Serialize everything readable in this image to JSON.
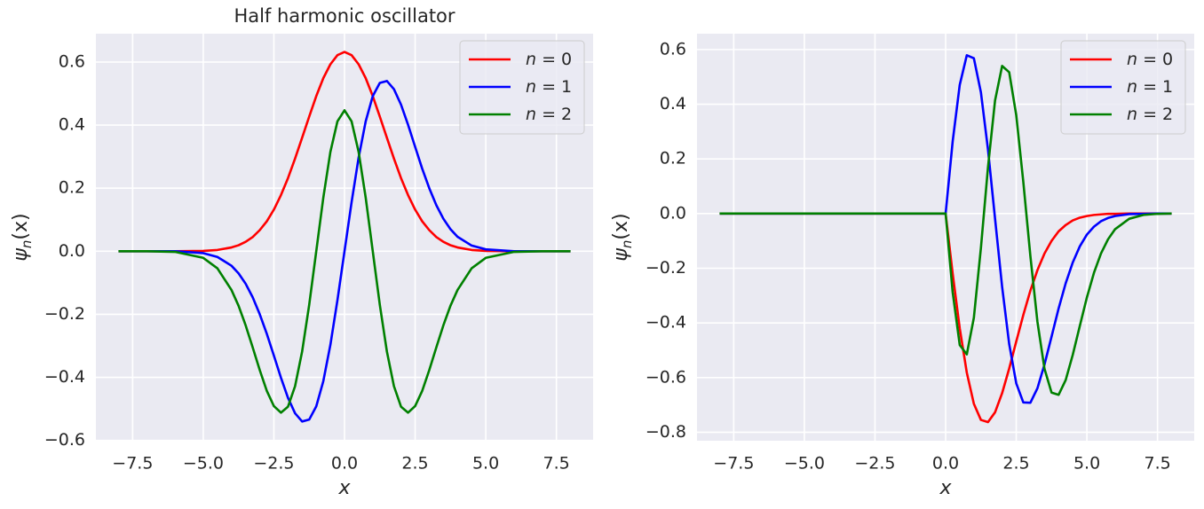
{
  "chart_data": [
    {
      "type": "line",
      "title": "Half harmonic oscillator",
      "xlabel": "x",
      "ylabel": "ψn(x)",
      "x": [
        -8,
        -7,
        -6,
        -5,
        -4.5,
        -4,
        -3.75,
        -3.5,
        -3.25,
        -3,
        -2.75,
        -2.5,
        -2.25,
        -2,
        -1.75,
        -1.5,
        -1.25,
        -1,
        -0.75,
        -0.5,
        -0.25,
        0,
        0.25,
        0.5,
        0.75,
        1,
        1.25,
        1.5,
        1.75,
        2,
        2.25,
        2.5,
        2.75,
        3,
        3.25,
        3.5,
        3.75,
        4,
        4.5,
        5,
        6,
        7,
        8
      ],
      "series": [
        {
          "name": "n = 0",
          "color": "#ff0000",
          "values": [
            0,
            0,
            0,
            0.001,
            0.004,
            0.012,
            0.019,
            0.03,
            0.045,
            0.067,
            0.095,
            0.132,
            0.178,
            0.232,
            0.294,
            0.36,
            0.427,
            0.492,
            0.549,
            0.593,
            0.622,
            0.632,
            0.622,
            0.593,
            0.549,
            0.492,
            0.427,
            0.36,
            0.294,
            0.232,
            0.178,
            0.132,
            0.095,
            0.067,
            0.045,
            0.03,
            0.019,
            0.012,
            0.004,
            0.001,
            0,
            0,
            0
          ]
        },
        {
          "name": "n = 1",
          "color": "#0000ff",
          "values": [
            0,
            0,
            0,
            -0.006,
            -0.018,
            -0.046,
            -0.07,
            -0.103,
            -0.146,
            -0.2,
            -0.262,
            -0.331,
            -0.401,
            -0.465,
            -0.514,
            -0.54,
            -0.534,
            -0.492,
            -0.412,
            -0.297,
            -0.155,
            0,
            0.155,
            0.297,
            0.412,
            0.492,
            0.534,
            0.54,
            0.514,
            0.465,
            0.401,
            0.331,
            0.262,
            0.2,
            0.146,
            0.103,
            0.07,
            0.046,
            0.018,
            0.006,
            0,
            0,
            0
          ]
        },
        {
          "name": "n = 2",
          "color": "#008000",
          "values": [
            0,
            0,
            -0.002,
            -0.021,
            -0.054,
            -0.123,
            -0.173,
            -0.235,
            -0.305,
            -0.377,
            -0.443,
            -0.491,
            -0.512,
            -0.493,
            -0.428,
            -0.318,
            -0.17,
            0,
            0.17,
            0.315,
            0.412,
            0.447,
            0.412,
            0.315,
            0.17,
            0,
            -0.17,
            -0.318,
            -0.428,
            -0.493,
            -0.512,
            -0.491,
            -0.443,
            -0.377,
            -0.305,
            -0.235,
            -0.173,
            -0.123,
            -0.054,
            -0.021,
            -0.002,
            0,
            0
          ]
        }
      ],
      "xlim": [
        -8.8,
        8.8
      ],
      "ylim": [
        -0.601,
        0.69
      ],
      "xticks": [
        {
          "value": -7.5,
          "label": "−7.5"
        },
        {
          "value": -5,
          "label": "−5.0"
        },
        {
          "value": -2.5,
          "label": "−2.5"
        },
        {
          "value": 0,
          "label": "0.0"
        },
        2.5,
        {
          "value": 5,
          "label": "5.0"
        },
        7.5
      ],
      "yticks": [
        {
          "value": -0.6,
          "label": "−0.6"
        },
        {
          "value": -0.4,
          "label": "−0.4"
        },
        {
          "value": -0.2,
          "label": "−0.2"
        },
        {
          "value": 0,
          "label": "0.0"
        },
        0.2,
        0.4,
        0.6
      ],
      "grid": true,
      "legend": "upper right"
    },
    {
      "type": "line",
      "xlabel": "x",
      "ylabel": "ψn(x)",
      "x": [
        -8,
        -4,
        0,
        0.25,
        0.5,
        0.75,
        1,
        1.25,
        1.5,
        1.75,
        2,
        2.25,
        2.5,
        2.75,
        3,
        3.25,
        3.5,
        3.75,
        4,
        4.25,
        4.5,
        4.75,
        5,
        5.25,
        5.5,
        5.75,
        6,
        6.5,
        7,
        7.5,
        8
      ],
      "series": [
        {
          "name": "n = 0",
          "color": "#ff0000",
          "values": [
            0,
            0,
            0,
            -0.22,
            -0.42,
            -0.582,
            -0.696,
            -0.755,
            -0.763,
            -0.727,
            -0.657,
            -0.567,
            -0.468,
            -0.371,
            -0.282,
            -0.207,
            -0.146,
            -0.1,
            -0.065,
            -0.042,
            -0.025,
            -0.015,
            -0.009,
            -0.005,
            -0.003,
            -0.001,
            -0.001,
            0,
            0,
            0,
            0
          ]
        },
        {
          "name": "n = 1",
          "color": "#0000ff",
          "values": [
            0,
            0,
            0,
            0.264,
            0.471,
            0.579,
            0.568,
            0.443,
            0.234,
            -0.019,
            -0.268,
            -0.477,
            -0.621,
            -0.691,
            -0.692,
            -0.639,
            -0.552,
            -0.45,
            -0.347,
            -0.255,
            -0.179,
            -0.12,
            -0.077,
            -0.048,
            -0.028,
            -0.016,
            -0.009,
            -0.002,
            -0.001,
            0,
            0
          ]
        },
        {
          "name": "n = 2",
          "color": "#008000",
          "values": [
            0,
            0,
            0,
            -0.288,
            -0.481,
            -0.515,
            -0.381,
            -0.125,
            0.17,
            0.414,
            0.54,
            0.517,
            0.36,
            0.116,
            -0.155,
            -0.396,
            -0.568,
            -0.655,
            -0.663,
            -0.609,
            -0.517,
            -0.411,
            -0.307,
            -0.217,
            -0.146,
            -0.094,
            -0.057,
            -0.019,
            -0.005,
            -0.001,
            0
          ]
        }
      ],
      "xlim": [
        -8.8,
        8.8
      ],
      "ylim": [
        -0.831,
        0.658
      ],
      "xticks": [
        {
          "value": -7.5,
          "label": "−7.5"
        },
        {
          "value": -5,
          "label": "−5.0"
        },
        {
          "value": -2.5,
          "label": "−2.5"
        },
        {
          "value": 0,
          "label": "0.0"
        },
        2.5,
        {
          "value": 5,
          "label": "5.0"
        },
        7.5
      ],
      "yticks": [
        {
          "value": -0.8,
          "label": "−0.8"
        },
        {
          "value": -0.6,
          "label": "−0.6"
        },
        {
          "value": -0.4,
          "label": "−0.4"
        },
        {
          "value": -0.2,
          "label": "−0.2"
        },
        {
          "value": 0,
          "label": "0.0"
        },
        0.2,
        0.4,
        0.6
      ],
      "grid": true,
      "legend": "upper right"
    }
  ]
}
